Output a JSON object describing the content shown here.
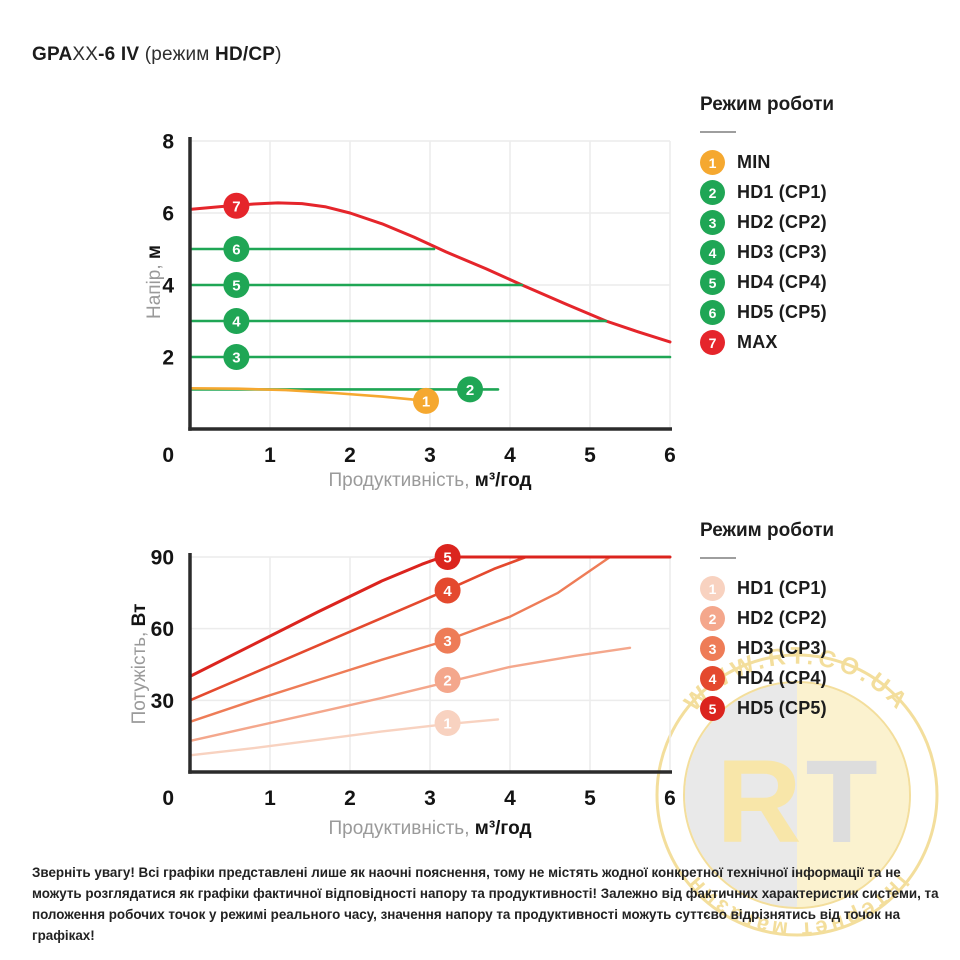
{
  "page_title": {
    "segments": [
      {
        "text": "GPA",
        "bold": true
      },
      {
        "text": "XX",
        "bold": false
      },
      {
        "text": "-6 IV",
        "bold": true
      },
      {
        "text": " (режим ",
        "bold": false
      },
      {
        "text": "HD/CP",
        "bold": true
      },
      {
        "text": ")",
        "bold": false
      }
    ]
  },
  "chart_data": [
    {
      "type": "line",
      "title": "Напірна характеристика",
      "xlabel_pre": "Продуктивність, ",
      "xlabel_suf": "м³/год",
      "ylabel_pre": "Напір, ",
      "ylabel_suf": "м",
      "xlim": [
        0,
        6
      ],
      "ylim": [
        0,
        8
      ],
      "xticks": [
        0,
        1,
        2,
        3,
        4,
        5,
        6
      ],
      "yticks": [
        0,
        2,
        4,
        6,
        8
      ],
      "grid": true,
      "series": [
        {
          "name": "MAX",
          "color": "#E5252B",
          "width": 3,
          "points": [
            [
              0,
              6.1
            ],
            [
              0.4,
              6.18
            ],
            [
              0.8,
              6.25
            ],
            [
              1.1,
              6.28
            ],
            [
              1.4,
              6.26
            ],
            [
              1.7,
              6.17
            ],
            [
              2.0,
              6.0
            ],
            [
              2.4,
              5.7
            ],
            [
              2.8,
              5.33
            ],
            [
              3.2,
              4.92
            ],
            [
              3.7,
              4.45
            ],
            [
              4.15,
              4.0
            ],
            [
              4.7,
              3.47
            ],
            [
              5.2,
              3.0
            ],
            [
              5.6,
              2.7
            ],
            [
              6,
              2.42
            ]
          ]
        },
        {
          "name": "HD5 (CP5)",
          "color": "#1FA655",
          "width": 2.6,
          "points": [
            [
              0,
              5
            ],
            [
              3.05,
              5
            ]
          ]
        },
        {
          "name": "HD4 (CP4)",
          "color": "#1FA655",
          "width": 2.6,
          "points": [
            [
              0,
              4
            ],
            [
              4.15,
              4
            ]
          ]
        },
        {
          "name": "HD3 (CP3)",
          "color": "#1FA655",
          "width": 2.6,
          "points": [
            [
              0,
              3
            ],
            [
              5.2,
              3
            ]
          ]
        },
        {
          "name": "HD2 (CP2)",
          "color": "#1FA655",
          "width": 2.6,
          "points": [
            [
              0,
              2
            ],
            [
              6,
              2
            ]
          ]
        },
        {
          "name": "HD1 (CP1)",
          "color": "#1FA655",
          "width": 2.6,
          "points": [
            [
              0,
              1.1
            ],
            [
              3.85,
              1.1
            ]
          ]
        },
        {
          "name": "MIN",
          "color": "#F5A830",
          "width": 2.6,
          "points": [
            [
              0,
              1.13
            ],
            [
              0.6,
              1.12
            ],
            [
              1.2,
              1.08
            ],
            [
              1.8,
              1.0
            ],
            [
              2.4,
              0.9
            ],
            [
              3.05,
              0.76
            ]
          ]
        }
      ],
      "markers": [
        {
          "label": "7",
          "color": "#E5252B",
          "x": 0.58,
          "y": 6.2
        },
        {
          "label": "6",
          "color": "#1FA655",
          "x": 0.58,
          "y": 5
        },
        {
          "label": "5",
          "color": "#1FA655",
          "x": 0.58,
          "y": 4
        },
        {
          "label": "4",
          "color": "#1FA655",
          "x": 0.58,
          "y": 3
        },
        {
          "label": "3",
          "color": "#1FA655",
          "x": 0.58,
          "y": 2
        },
        {
          "label": "2",
          "color": "#1FA655",
          "x": 3.5,
          "y": 1.1
        },
        {
          "label": "1",
          "color": "#F5A830",
          "x": 2.95,
          "y": 0.78
        }
      ],
      "legend": {
        "title": "Режим роботи",
        "items": [
          {
            "num": "1",
            "label": "MIN",
            "color": "#F5A830"
          },
          {
            "num": "2",
            "label": "HD1 (CP1)",
            "color": "#1FA655"
          },
          {
            "num": "3",
            "label": "HD2 (CP2)",
            "color": "#1FA655"
          },
          {
            "num": "4",
            "label": "HD3 (CP3)",
            "color": "#1FA655"
          },
          {
            "num": "5",
            "label": "HD4 (CP4)",
            "color": "#1FA655"
          },
          {
            "num": "6",
            "label": "HD5 (CP5)",
            "color": "#1FA655"
          },
          {
            "num": "7",
            "label": "MAX",
            "color": "#E5252B"
          }
        ]
      }
    },
    {
      "type": "line",
      "title": "Споживана потужність",
      "xlabel_pre": "Продуктивність, ",
      "xlabel_suf": "м³/год",
      "ylabel_pre": "Потужість, ",
      "ylabel_suf": "Вт",
      "xlim": [
        0,
        6
      ],
      "ylim": [
        0,
        90
      ],
      "xticks": [
        0,
        1,
        2,
        3,
        4,
        5,
        6
      ],
      "yticks": [
        0,
        30,
        60,
        90
      ],
      "grid": true,
      "series": [
        {
          "name": "HD1 (CP1)",
          "color": "#F8D2C0",
          "width": 2.4,
          "points": [
            [
              0,
              7
            ],
            [
              0.8,
              10
            ],
            [
              1.6,
              13.5
            ],
            [
              2.4,
              17
            ],
            [
              3.2,
              20
            ],
            [
              3.85,
              22
            ]
          ]
        },
        {
          "name": "HD2 (CP2)",
          "color": "#F4A78C",
          "width": 2.4,
          "points": [
            [
              0,
              13
            ],
            [
              0.8,
              19
            ],
            [
              1.6,
              25
            ],
            [
              2.4,
              31
            ],
            [
              3.2,
              37.5
            ],
            [
              4,
              44
            ],
            [
              4.8,
              48.5
            ],
            [
              5.5,
              52
            ]
          ]
        },
        {
          "name": "HD3 (CP3)",
          "color": "#EE7C57",
          "width": 2.4,
          "points": [
            [
              0,
              21
            ],
            [
              0.8,
              30
            ],
            [
              1.6,
              38.5
            ],
            [
              2.4,
              47
            ],
            [
              3.2,
              55
            ],
            [
              4,
              65
            ],
            [
              4.6,
              75
            ],
            [
              5.25,
              90
            ]
          ]
        },
        {
          "name": "HD4 (CP4)",
          "color": "#E4492E",
          "width": 2.6,
          "points": [
            [
              0,
              30
            ],
            [
              0.8,
              41.5
            ],
            [
              1.6,
              53
            ],
            [
              2.4,
              64.5
            ],
            [
              3.2,
              76
            ],
            [
              3.8,
              85
            ],
            [
              4.2,
              90
            ]
          ]
        },
        {
          "name": "HD5 (CP5)",
          "color": "#DB241E",
          "width": 3,
          "points": [
            [
              0,
              40
            ],
            [
              0.8,
              53.5
            ],
            [
              1.6,
              67
            ],
            [
              2.4,
              80
            ],
            [
              2.9,
              87
            ],
            [
              3.15,
              90
            ],
            [
              6,
              90
            ]
          ]
        }
      ],
      "markers": [
        {
          "label": "5",
          "color": "#DB241E",
          "x": 3.22,
          "y": 90
        },
        {
          "label": "4",
          "color": "#E4492E",
          "x": 3.22,
          "y": 76
        },
        {
          "label": "3",
          "color": "#EE7C57",
          "x": 3.22,
          "y": 55
        },
        {
          "label": "2",
          "color": "#F4A78C",
          "x": 3.22,
          "y": 38.5
        },
        {
          "label": "1",
          "color": "#F8D2C0",
          "x": 3.22,
          "y": 20.5
        }
      ],
      "legend": {
        "title": "Режим роботи",
        "items": [
          {
            "num": "1",
            "label": "HD1 (CP1)",
            "color": "#F8D2C0"
          },
          {
            "num": "2",
            "label": "HD2 (CP2)",
            "color": "#F4A78C"
          },
          {
            "num": "3",
            "label": "HD3 (CP3)",
            "color": "#EE7C57"
          },
          {
            "num": "4",
            "label": "HD4 (CP4)",
            "color": "#E4492E"
          },
          {
            "num": "5",
            "label": "HD5 (CP5)",
            "color": "#DB241E"
          }
        ]
      }
    }
  ],
  "footer_note": "Зверніть увагу! Всі графіки представлені лише як наочні пояснення, тому не містять жодної конкретної технічної інформації та не можуть розглядатися як графіки фактичної відповідності напору та продуктивності! Залежно від фактичних характеристик системи, та положення робочих точок у режимі реального часу, значення напору та продуктивності можуть суттєво відрізнятись від точок на графіках!",
  "watermark": {
    "arc_top": "WWW.RT.CO.UA",
    "letter_r": "R",
    "letter_t": "T",
    "arc_bottom": "інтернет магазин"
  },
  "colors": {
    "max_red": "#E5252B",
    "green": "#1FA655",
    "min_orange": "#F5A830",
    "axis": "#2b2b2b",
    "grid": "#ececec",
    "gold": "#E9BE3B"
  }
}
